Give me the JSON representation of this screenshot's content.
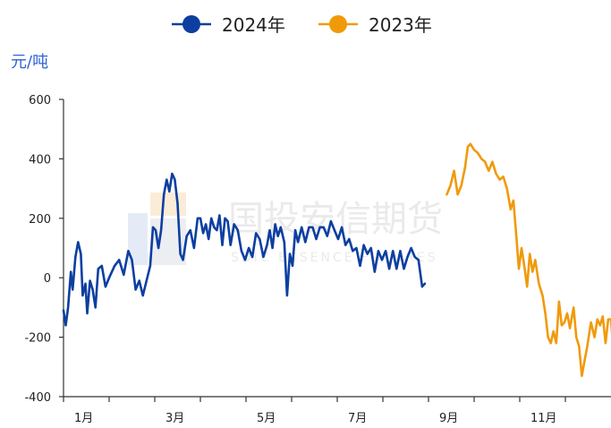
{
  "chart_data": {
    "type": "line",
    "unit_label": "元/吨",
    "unit_color": "#2f63d6",
    "yticks": [
      600,
      400,
      200,
      0,
      -200,
      -400
    ],
    "ylim": [
      -400,
      600
    ],
    "xlim": [
      0,
      12
    ],
    "months": [
      "1月",
      "3月",
      "5月",
      "7月",
      "9月",
      "11月"
    ],
    "month_positions": [
      0,
      2,
      4,
      6,
      8,
      10
    ],
    "grid": false,
    "legend": "top-center",
    "watermark": {
      "logo_text": "国投安信期货",
      "sub_text": "SDIC ESSENCE FUTURES"
    },
    "series": [
      {
        "name": "2024年",
        "color": "#0c3fa0",
        "points": [
          [
            0.0,
            -110
          ],
          [
            0.05,
            -160
          ],
          [
            0.1,
            -100
          ],
          [
            0.16,
            20
          ],
          [
            0.2,
            -40
          ],
          [
            0.26,
            70
          ],
          [
            0.32,
            120
          ],
          [
            0.38,
            80
          ],
          [
            0.42,
            -60
          ],
          [
            0.48,
            -20
          ],
          [
            0.52,
            -120
          ],
          [
            0.58,
            -10
          ],
          [
            0.64,
            -40
          ],
          [
            0.7,
            -100
          ],
          [
            0.76,
            30
          ],
          [
            0.84,
            40
          ],
          [
            0.92,
            -30
          ],
          [
            1.0,
            0
          ],
          [
            1.12,
            40
          ],
          [
            1.22,
            60
          ],
          [
            1.32,
            10
          ],
          [
            1.42,
            90
          ],
          [
            1.5,
            60
          ],
          [
            1.58,
            -40
          ],
          [
            1.66,
            -10
          ],
          [
            1.74,
            -60
          ],
          [
            1.82,
            -10
          ],
          [
            1.9,
            40
          ],
          [
            1.96,
            170
          ],
          [
            2.02,
            160
          ],
          [
            2.08,
            100
          ],
          [
            2.14,
            160
          ],
          [
            2.2,
            280
          ],
          [
            2.26,
            330
          ],
          [
            2.32,
            290
          ],
          [
            2.38,
            350
          ],
          [
            2.44,
            330
          ],
          [
            2.5,
            250
          ],
          [
            2.56,
            80
          ],
          [
            2.62,
            60
          ],
          [
            2.7,
            140
          ],
          [
            2.78,
            160
          ],
          [
            2.86,
            100
          ],
          [
            2.94,
            200
          ],
          [
            3.0,
            200
          ],
          [
            3.06,
            150
          ],
          [
            3.12,
            180
          ],
          [
            3.18,
            130
          ],
          [
            3.24,
            200
          ],
          [
            3.3,
            170
          ],
          [
            3.36,
            160
          ],
          [
            3.42,
            210
          ],
          [
            3.48,
            110
          ],
          [
            3.54,
            200
          ],
          [
            3.6,
            190
          ],
          [
            3.66,
            110
          ],
          [
            3.74,
            180
          ],
          [
            3.82,
            160
          ],
          [
            3.9,
            90
          ],
          [
            3.98,
            60
          ],
          [
            4.06,
            100
          ],
          [
            4.14,
            70
          ],
          [
            4.22,
            150
          ],
          [
            4.3,
            130
          ],
          [
            4.38,
            70
          ],
          [
            4.46,
            110
          ],
          [
            4.52,
            160
          ],
          [
            4.58,
            100
          ],
          [
            4.64,
            180
          ],
          [
            4.7,
            140
          ],
          [
            4.76,
            170
          ],
          [
            4.84,
            120
          ],
          [
            4.9,
            -60
          ],
          [
            4.96,
            80
          ],
          [
            5.02,
            40
          ],
          [
            5.08,
            160
          ],
          [
            5.14,
            120
          ],
          [
            5.22,
            170
          ],
          [
            5.3,
            120
          ],
          [
            5.38,
            170
          ],
          [
            5.46,
            170
          ],
          [
            5.54,
            130
          ],
          [
            5.62,
            170
          ],
          [
            5.7,
            170
          ],
          [
            5.78,
            140
          ],
          [
            5.86,
            190
          ],
          [
            5.94,
            160
          ],
          [
            6.02,
            130
          ],
          [
            6.1,
            170
          ],
          [
            6.18,
            110
          ],
          [
            6.26,
            130
          ],
          [
            6.34,
            90
          ],
          [
            6.42,
            100
          ],
          [
            6.5,
            40
          ],
          [
            6.58,
            110
          ],
          [
            6.66,
            80
          ],
          [
            6.74,
            100
          ],
          [
            6.82,
            20
          ],
          [
            6.9,
            90
          ],
          [
            6.98,
            60
          ],
          [
            7.06,
            90
          ],
          [
            7.14,
            30
          ],
          [
            7.22,
            90
          ],
          [
            7.3,
            30
          ],
          [
            7.38,
            90
          ],
          [
            7.46,
            30
          ],
          [
            7.54,
            70
          ],
          [
            7.62,
            100
          ],
          [
            7.7,
            70
          ],
          [
            7.78,
            60
          ],
          [
            7.86,
            -30
          ],
          [
            7.92,
            -20
          ]
        ]
      },
      {
        "name": "2023年",
        "color": "#f09a0a",
        "points": [
          [
            8.4,
            280
          ],
          [
            8.48,
            310
          ],
          [
            8.56,
            360
          ],
          [
            8.64,
            280
          ],
          [
            8.72,
            310
          ],
          [
            8.8,
            370
          ],
          [
            8.86,
            440
          ],
          [
            8.92,
            450
          ],
          [
            9.0,
            430
          ],
          [
            9.08,
            420
          ],
          [
            9.16,
            400
          ],
          [
            9.24,
            390
          ],
          [
            9.32,
            360
          ],
          [
            9.4,
            390
          ],
          [
            9.48,
            350
          ],
          [
            9.56,
            330
          ],
          [
            9.64,
            340
          ],
          [
            9.72,
            300
          ],
          [
            9.8,
            230
          ],
          [
            9.86,
            260
          ],
          [
            9.92,
            150
          ],
          [
            9.98,
            30
          ],
          [
            10.04,
            100
          ],
          [
            10.1,
            40
          ],
          [
            10.16,
            -30
          ],
          [
            10.22,
            80
          ],
          [
            10.28,
            20
          ],
          [
            10.34,
            60
          ],
          [
            10.42,
            -20
          ],
          [
            10.5,
            -60
          ],
          [
            10.56,
            -120
          ],
          [
            10.62,
            -200
          ],
          [
            10.68,
            -220
          ],
          [
            10.74,
            -180
          ],
          [
            10.8,
            -220
          ],
          [
            10.86,
            -80
          ],
          [
            10.92,
            -160
          ],
          [
            10.98,
            -150
          ],
          [
            11.04,
            -120
          ],
          [
            11.1,
            -170
          ],
          [
            11.18,
            -100
          ],
          [
            11.24,
            -200
          ],
          [
            11.3,
            -230
          ],
          [
            11.36,
            -330
          ],
          [
            11.42,
            -280
          ],
          [
            11.48,
            -230
          ],
          [
            11.56,
            -150
          ],
          [
            11.64,
            -200
          ],
          [
            11.7,
            -140
          ],
          [
            11.76,
            -160
          ],
          [
            11.82,
            -130
          ],
          [
            11.88,
            -220
          ],
          [
            11.94,
            -140
          ],
          [
            12.0,
            -140
          ],
          [
            12.04,
            -220
          ],
          [
            12.08,
            -230
          ],
          [
            12.12,
            -260
          ]
        ]
      }
    ]
  }
}
